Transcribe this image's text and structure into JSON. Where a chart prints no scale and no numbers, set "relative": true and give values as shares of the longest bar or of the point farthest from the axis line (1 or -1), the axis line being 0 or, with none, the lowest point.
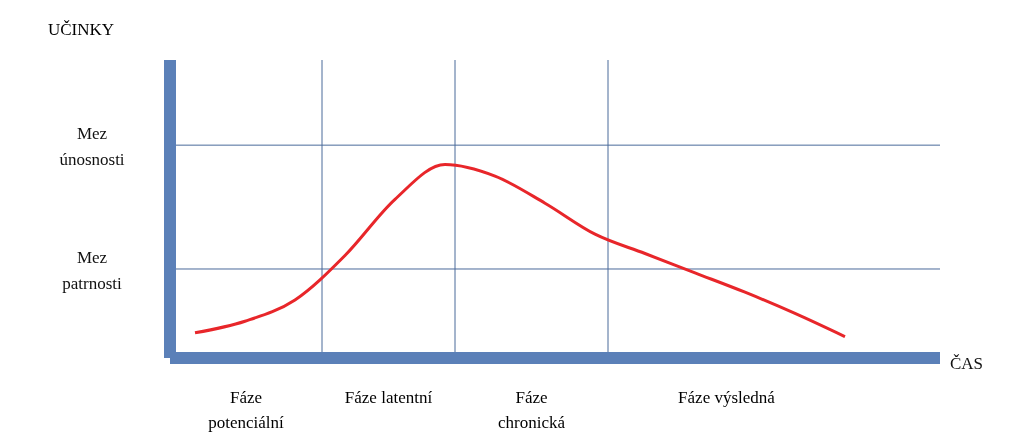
{
  "chart_data": {
    "type": "line",
    "relative": true,
    "xlabel": "ČAS",
    "categories": [
      null,
      null,
      null,
      null,
      null,
      null,
      null,
      null,
      null,
      null,
      null,
      null,
      null,
      null
    ],
    "series": [
      {
        "color": "#e8262a",
        "values": [
          0.13,
          0.19,
          0.3,
          0.53,
          0.82,
          1.0,
          0.94,
          0.8,
          0.64,
          0.54,
          0.44,
          0.34,
          0.23,
          0.11
        ]
      }
    ],
    "ref_lines": [
      {
        "axis": "y",
        "value": 1.1,
        "label": "Mez únosnosti",
        "color": "#4a6a9a"
      },
      {
        "axis": "y",
        "value": 0.46,
        "label": "Mez patrnosti",
        "color": "#4a6a9a"
      }
    ],
    "annotations": [
      "UČINKY",
      "Fáze potenciální",
      "Fáze latentní",
      "Fáze chronická",
      "Fáze výsledná"
    ],
    "marker": "none",
    "legend": false,
    "grid": false
  }
}
